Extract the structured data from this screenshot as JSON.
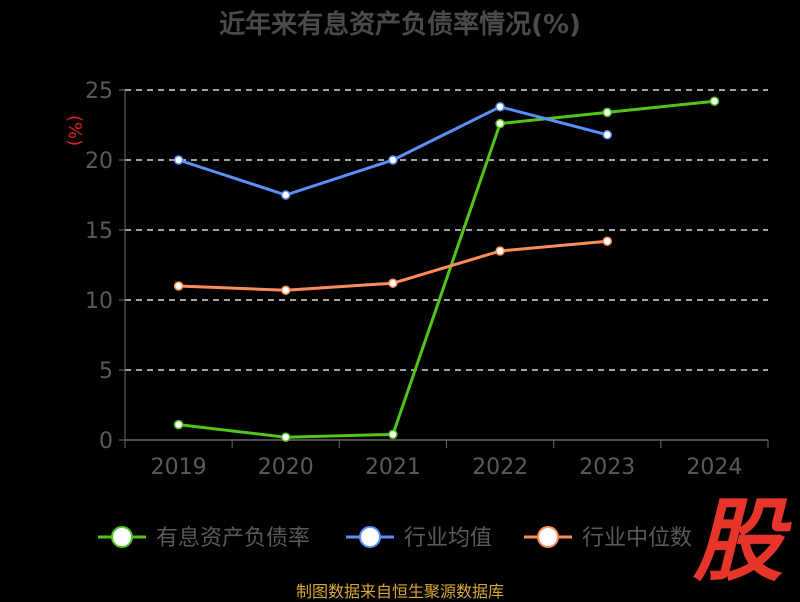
{
  "chart_data": {
    "type": "line",
    "title": "近年来有息资产负债率情况(%)",
    "ylabel": "(%)",
    "categories": [
      "2019",
      "2020",
      "2021",
      "2022",
      "2023",
      "2024"
    ],
    "ylim": [
      0,
      25
    ],
    "yticks": [
      0,
      5,
      10,
      15,
      20,
      25
    ],
    "grid": true,
    "legend_position": "bottom",
    "series": [
      {
        "name": "有息资产负债率",
        "color": "#52c41a",
        "values": [
          1.1,
          0.2,
          0.4,
          22.6,
          23.4,
          24.2
        ]
      },
      {
        "name": "行业均值",
        "color": "#5b8ff9",
        "values": [
          20.0,
          17.5,
          20.0,
          23.8,
          21.8,
          null
        ]
      },
      {
        "name": "行业中位数",
        "color": "#ff8c5a",
        "values": [
          11.0,
          10.7,
          11.2,
          13.5,
          14.2,
          null
        ]
      }
    ]
  },
  "source": "制图数据来自恒生聚源数据库",
  "logo_text": "股"
}
